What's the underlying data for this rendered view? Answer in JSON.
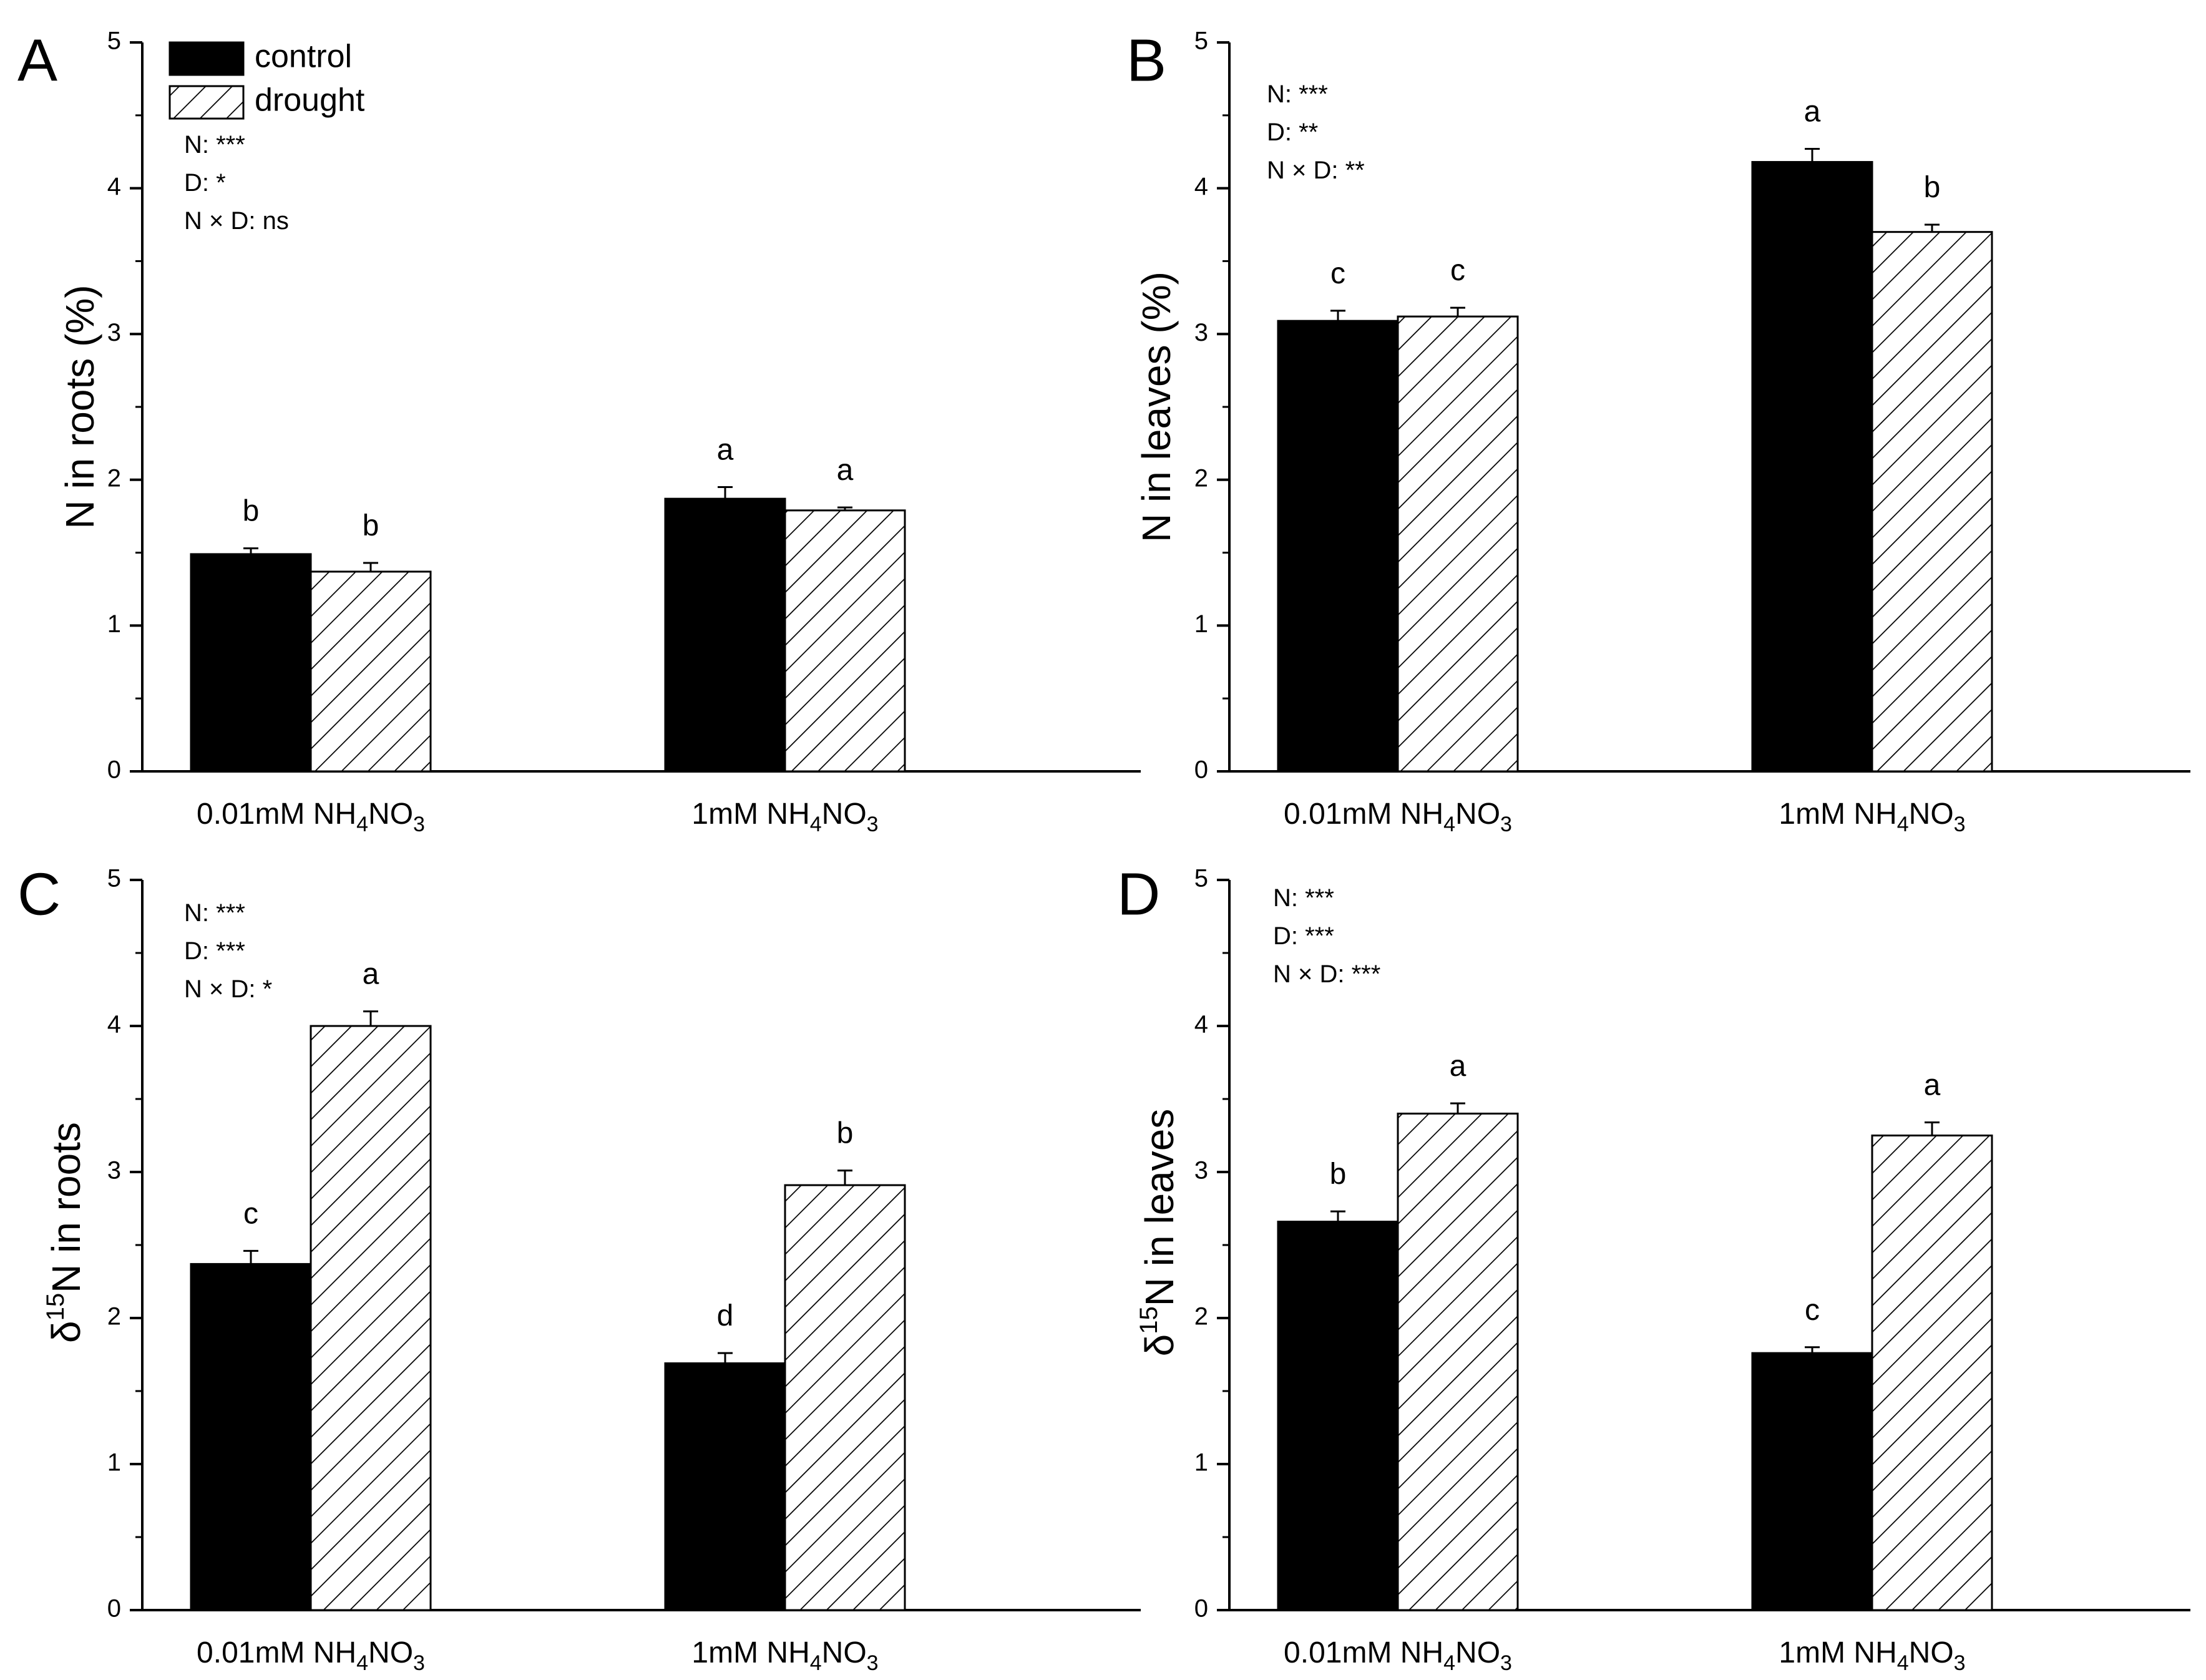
{
  "colors": {
    "control": "#000000",
    "drought_hatch": "#000000",
    "background": "#ffffff"
  },
  "legend": [
    {
      "name": "control",
      "style": "solid"
    },
    {
      "name": "drought",
      "style": "hatched"
    }
  ],
  "chart_data": [
    {
      "panel": "A",
      "type": "bar",
      "categories": [
        {
          "pre": "0.01mM NH",
          "sub1": "4",
          "mid": "NO",
          "sub2": "3"
        },
        {
          "pre": "1mM NH",
          "sub1": "4",
          "mid": "NO",
          "sub2": "3"
        }
      ],
      "ylabel": {
        "pre": "N in roots (%)",
        "sup": "",
        "post": ""
      },
      "ylim": [
        0,
        5
      ],
      "yticks": [
        "0",
        "1",
        "2",
        "3",
        "4",
        "5"
      ],
      "series": [
        {
          "name": "control",
          "values": [
            1.49,
            1.87
          ],
          "errors": [
            0.04,
            0.08
          ],
          "letters": [
            "b",
            "a"
          ]
        },
        {
          "name": "drought",
          "values": [
            1.37,
            1.79
          ],
          "errors": [
            0.06,
            0.02
          ],
          "letters": [
            "b",
            "a"
          ]
        }
      ],
      "stats": [
        "N: ***",
        "D: *",
        "N × D: ns"
      ],
      "show_legend": true
    },
    {
      "panel": "B",
      "type": "bar",
      "categories": [
        {
          "pre": "0.01mM NH",
          "sub1": "4",
          "mid": "NO",
          "sub2": "3"
        },
        {
          "pre": "1mM NH",
          "sub1": "4",
          "mid": "NO",
          "sub2": "3"
        }
      ],
      "ylabel": {
        "pre": "N in leaves (%)",
        "sup": "",
        "post": ""
      },
      "ylim": [
        0,
        5
      ],
      "yticks": [
        "0",
        "1",
        "2",
        "3",
        "4",
        "5"
      ],
      "series": [
        {
          "name": "control",
          "values": [
            3.09,
            4.18
          ],
          "errors": [
            0.07,
            0.09
          ],
          "letters": [
            "c",
            "a"
          ]
        },
        {
          "name": "drought",
          "values": [
            3.12,
            3.7
          ],
          "errors": [
            0.06,
            0.05
          ],
          "letters": [
            "c",
            "b"
          ]
        }
      ],
      "stats": [
        "N: ***",
        "D: **",
        "N × D: **"
      ],
      "show_legend": false
    },
    {
      "panel": "C",
      "type": "bar",
      "categories": [
        {
          "pre": "0.01mM NH",
          "sub1": "4",
          "mid": "NO",
          "sub2": "3"
        },
        {
          "pre": "1mM NH",
          "sub1": "4",
          "mid": "NO",
          "sub2": "3"
        }
      ],
      "ylabel": {
        "pre": "δ",
        "sup": "15",
        "post": "N in roots"
      },
      "ylim": [
        0,
        5
      ],
      "yticks": [
        "0",
        "1",
        "2",
        "3",
        "4",
        "5"
      ],
      "series": [
        {
          "name": "control",
          "values": [
            2.37,
            1.69
          ],
          "errors": [
            0.09,
            0.07
          ],
          "letters": [
            "c",
            "d"
          ]
        },
        {
          "name": "drought",
          "values": [
            4.0,
            2.91
          ],
          "errors": [
            0.1,
            0.1
          ],
          "letters": [
            "a",
            "b"
          ]
        }
      ],
      "stats": [
        "N: ***",
        "D:  ***",
        "N × D: *"
      ],
      "show_legend": false
    },
    {
      "panel": "D",
      "type": "bar",
      "categories": [
        {
          "pre": "0.01mM NH",
          "sub1": "4",
          "mid": "NO",
          "sub2": "3"
        },
        {
          "pre": "1mM NH",
          "sub1": "4",
          "mid": "NO",
          "sub2": "3"
        }
      ],
      "ylabel": {
        "pre": "δ",
        "sup": "15",
        "post": "N in leaves"
      },
      "ylim": [
        0,
        5
      ],
      "yticks": [
        "0",
        "1",
        "2",
        "3",
        "4",
        "5"
      ],
      "series": [
        {
          "name": "control",
          "values": [
            2.66,
            1.76
          ],
          "errors": [
            0.07,
            0.04
          ],
          "letters": [
            "b",
            "c"
          ]
        },
        {
          "name": "drought",
          "values": [
            3.4,
            3.25
          ],
          "errors": [
            0.07,
            0.09
          ],
          "letters": [
            "a",
            "a"
          ]
        }
      ],
      "stats": [
        "N: ***",
        "D: ***",
        "N × D: ***"
      ],
      "show_legend": false
    }
  ]
}
